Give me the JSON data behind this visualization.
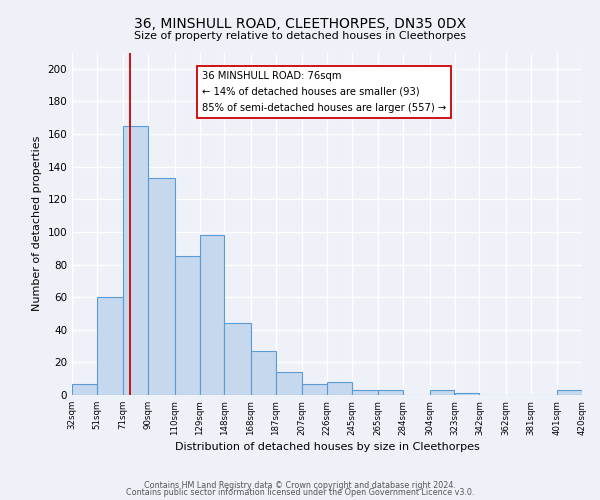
{
  "title": "36, MINSHULL ROAD, CLEETHORPES, DN35 0DX",
  "subtitle": "Size of property relative to detached houses in Cleethorpes",
  "xlabel": "Distribution of detached houses by size in Cleethorpes",
  "ylabel": "Number of detached properties",
  "bar_color": "#c5d8ed",
  "bar_edge_color": "#5b9bd5",
  "background_color": "#eef2f8",
  "bin_labels": [
    "32sqm",
    "51sqm",
    "71sqm",
    "90sqm",
    "110sqm",
    "129sqm",
    "148sqm",
    "168sqm",
    "187sqm",
    "207sqm",
    "226sqm",
    "245sqm",
    "265sqm",
    "284sqm",
    "304sqm",
    "323sqm",
    "342sqm",
    "362sqm",
    "381sqm",
    "401sqm",
    "420sqm"
  ],
  "bin_edges": [
    32,
    51,
    71,
    90,
    110,
    129,
    148,
    168,
    187,
    207,
    226,
    245,
    265,
    284,
    304,
    323,
    342,
    362,
    381,
    401,
    420
  ],
  "bar_heights": [
    7,
    60,
    165,
    133,
    85,
    98,
    44,
    27,
    14,
    7,
    8,
    3,
    3,
    0,
    3,
    1,
    0,
    0,
    0,
    3
  ],
  "ylim": [
    0,
    210
  ],
  "yticks": [
    0,
    20,
    40,
    60,
    80,
    100,
    120,
    140,
    160,
    180,
    200
  ],
  "property_line_x": 76,
  "property_line_color": "#cc0000",
  "annotation_line1": "36 MINSHULL ROAD: 76sqm",
  "annotation_line2": "← 14% of detached houses are smaller (93)",
  "annotation_line3": "85% of semi-detached houses are larger (557) →",
  "annotation_box_color": "#ffffff",
  "annotation_box_edge": "#cc0000",
  "footer_line1": "Contains HM Land Registry data © Crown copyright and database right 2024.",
  "footer_line2": "Contains public sector information licensed under the Open Government Licence v3.0."
}
